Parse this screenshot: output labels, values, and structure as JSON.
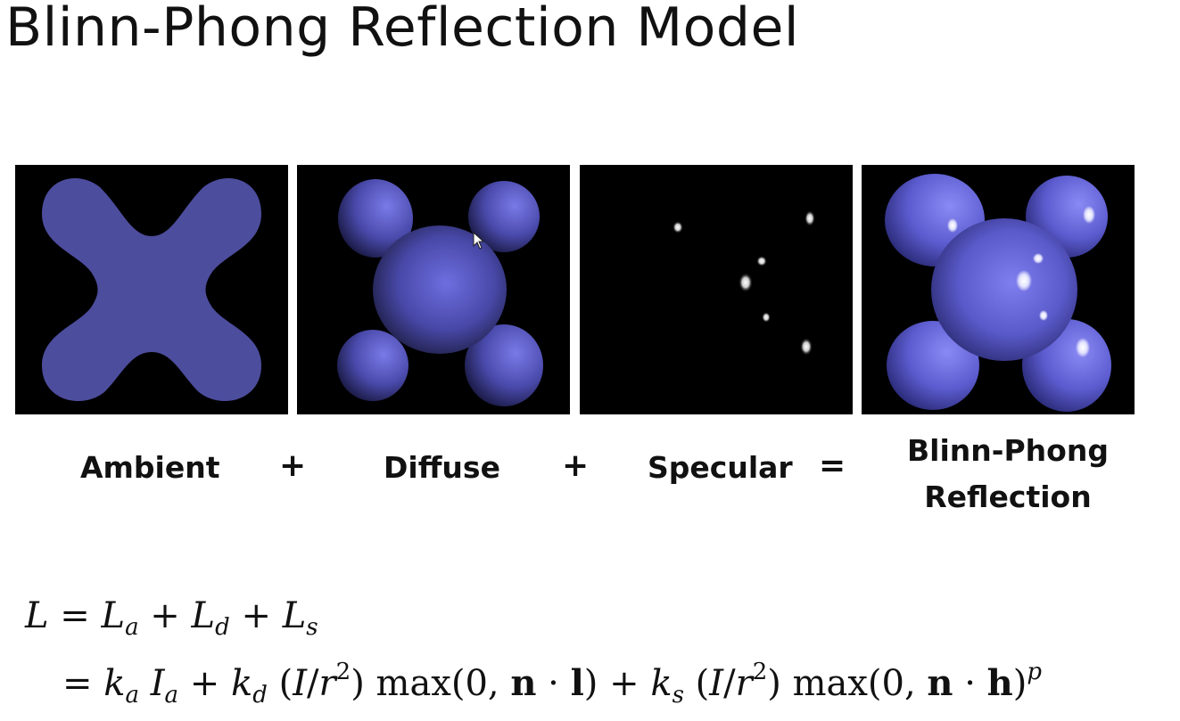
{
  "slide": {
    "title": "Blinn-Phong Reflection Model"
  },
  "panels": {
    "ambient_label": "Ambient",
    "diffuse_label": "Diffuse",
    "specular_label": "Specular",
    "combined_label_line1": "Blinn-Phong",
    "combined_label_line2": "Reflection",
    "plus_1": "+",
    "plus_2": "+",
    "equals": "="
  },
  "colors": {
    "shape_base": "#5a5ab0",
    "shape_flat": "#4b4b9a",
    "background": "#000000"
  }
}
